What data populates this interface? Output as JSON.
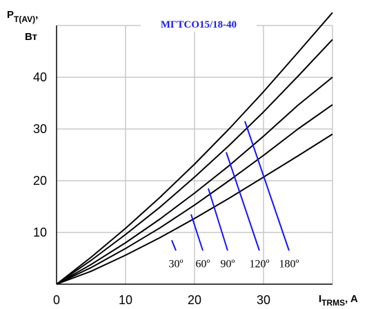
{
  "chart_data": {
    "type": "line",
    "title": "МГТСО15/18-40",
    "ylabel": {
      "main": "P",
      "sub": "T(AV)",
      "suffix": ",",
      "unit": "Вт"
    },
    "xlabel": {
      "main": "I",
      "sub": "TRMS",
      "suffix": ", A"
    },
    "xlim": [
      0,
      40
    ],
    "ylim": [
      0,
      50
    ],
    "xticks": [
      0,
      10,
      20,
      30
    ],
    "yticks": [
      10,
      20,
      30,
      40
    ],
    "grid": true,
    "series": [
      {
        "name": "30º",
        "x": [
          0,
          5,
          10,
          15,
          20,
          25,
          30,
          35,
          40
        ],
        "y": [
          0,
          5.2,
          10.8,
          16.8,
          23.2,
          30.0,
          37.2,
          44.8,
          52.5
        ]
      },
      {
        "name": "60º",
        "x": [
          0,
          5,
          10,
          15,
          20,
          25,
          30,
          35,
          40
        ],
        "y": [
          0,
          4.6,
          9.6,
          14.9,
          20.7,
          26.8,
          33.3,
          40.2,
          47.3
        ]
      },
      {
        "name": "90º",
        "x": [
          0,
          5,
          10,
          15,
          20,
          25,
          30,
          35,
          40
        ],
        "y": [
          0,
          3.8,
          8.0,
          12.6,
          17.6,
          22.9,
          28.6,
          34.6,
          40.0
        ]
      },
      {
        "name": "120º",
        "x": [
          0,
          5,
          10,
          15,
          20,
          25,
          30,
          35,
          40
        ],
        "y": [
          0,
          3.2,
          6.9,
          10.9,
          15.3,
          20.0,
          24.9,
          30.0,
          34.7
        ]
      },
      {
        "name": "180º",
        "x": [
          0,
          5,
          10,
          15,
          20,
          25,
          30,
          35,
          40
        ],
        "y": [
          0,
          2.5,
          5.6,
          9.0,
          12.7,
          16.6,
          20.7,
          24.8,
          29.0
        ]
      }
    ],
    "annotations": [
      {
        "label": "30º",
        "from": [
          16.7,
          8.5
        ],
        "to": [
          17.3,
          6.5
        ]
      },
      {
        "label": "60º",
        "from": [
          19.5,
          13.5
        ],
        "to": [
          21.2,
          6.5
        ]
      },
      {
        "label": "90º",
        "from": [
          22.0,
          18.5
        ],
        "to": [
          24.8,
          6.5
        ]
      },
      {
        "label": "120º",
        "from": [
          24.6,
          25.5
        ],
        "to": [
          29.4,
          6.5
        ]
      },
      {
        "label": "180º",
        "from": [
          27.3,
          31.5
        ],
        "to": [
          33.7,
          6.5
        ]
      }
    ],
    "colors": {
      "curve": "#000000",
      "pointer": "#1414ff",
      "grid": "#c8c8c8",
      "title": "#1a1aff"
    }
  }
}
